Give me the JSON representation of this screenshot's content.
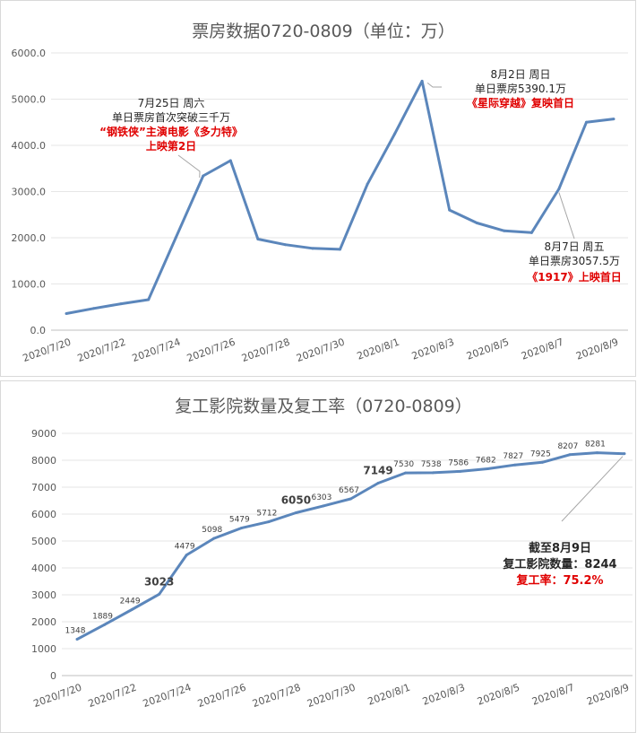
{
  "chart_data": [
    {
      "type": "line",
      "title": "票房数据0720-0809（单位：万）",
      "xlabel": "",
      "ylabel": "",
      "ylim": [
        0,
        6000
      ],
      "y_ticks": [
        "0.0",
        "1000.0",
        "2000.0",
        "3000.0",
        "4000.0",
        "5000.0",
        "6000.0"
      ],
      "x_tick_labels": [
        "2020/7/20",
        "2020/7/22",
        "2020/7/24",
        "2020/7/26",
        "2020/7/28",
        "2020/7/30",
        "2020/8/1",
        "2020/8/3",
        "2020/8/5",
        "2020/8/7",
        "2020/8/9"
      ],
      "x": [
        "2020/7/20",
        "2020/7/21",
        "2020/7/22",
        "2020/7/23",
        "2020/7/24",
        "2020/7/25",
        "2020/7/26",
        "2020/7/27",
        "2020/7/28",
        "2020/7/29",
        "2020/7/30",
        "2020/7/31",
        "2020/8/1",
        "2020/8/2",
        "2020/8/3",
        "2020/8/4",
        "2020/8/5",
        "2020/8/6",
        "2020/8/7",
        "2020/8/8",
        "2020/8/9"
      ],
      "values": [
        360,
        470,
        570,
        660,
        2000,
        3340,
        3670,
        1970,
        1850,
        1770,
        1750,
        3160,
        4250,
        5390,
        2600,
        2320,
        2150,
        2110,
        3057.5,
        4500,
        4570
      ],
      "grid": true,
      "annotations": [
        {
          "x": "2020/7/25",
          "lines": [
            "7月25日 周六",
            "单日票房首次突破三千万"
          ],
          "red_lines": [
            "“钢铁侠”主演电影《多力特》",
            "上映第2日"
          ]
        },
        {
          "x": "2020/8/2",
          "lines": [
            "8月2日 周日",
            "单日票房5390.1万"
          ],
          "red_lines": [
            "《星际穿越》复映首日"
          ]
        },
        {
          "x": "2020/8/7",
          "lines": [
            "8月7日 周五",
            "单日票房3057.5万"
          ],
          "red_lines": [
            "《1917》上映首日"
          ]
        }
      ]
    },
    {
      "type": "line",
      "title": "复工影院数量及复工率（0720-0809）",
      "xlabel": "",
      "ylabel": "",
      "ylim": [
        0,
        9000
      ],
      "y_ticks": [
        "0",
        "1000",
        "2000",
        "3000",
        "4000",
        "5000",
        "6000",
        "7000",
        "8000",
        "9000"
      ],
      "x_tick_labels": [
        "2020/7/20",
        "2020/7/22",
        "2020/7/24",
        "2020/7/26",
        "2020/7/28",
        "2020/7/30",
        "2020/8/1",
        "2020/8/3",
        "2020/8/5",
        "2020/8/7",
        "2020/8/9"
      ],
      "x": [
        "2020/7/20",
        "2020/7/21",
        "2020/7/22",
        "2020/7/23",
        "2020/7/24",
        "2020/7/25",
        "2020/7/26",
        "2020/7/27",
        "2020/7/28",
        "2020/7/29",
        "2020/7/30",
        "2020/7/31",
        "2020/8/1",
        "2020/8/2",
        "2020/8/3",
        "2020/8/4",
        "2020/8/5",
        "2020/8/6",
        "2020/8/7",
        "2020/8/8",
        "2020/8/9"
      ],
      "values": [
        1348,
        1889,
        2449,
        3023,
        4479,
        5098,
        5479,
        5712,
        6050,
        6303,
        6567,
        7149,
        7530,
        7538,
        7586,
        7682,
        7827,
        7925,
        8207,
        8281,
        8244
      ],
      "data_labels": [
        "1348",
        "1889",
        "2449",
        "3023",
        "4479",
        "5098",
        "5479",
        "5712",
        "6050",
        "6303",
        "6567",
        "7149",
        "7530",
        "7538",
        "7586",
        "7682",
        "7827",
        "7925",
        "8207",
        "8281",
        ""
      ],
      "bold_label_indices": [
        3,
        8,
        11
      ],
      "grid": true,
      "summary": {
        "line1": "截至8月9日",
        "line2": "复工影院数量：8244",
        "line3": "复工率：75.2%"
      }
    }
  ],
  "colors": {
    "series": "#5b86bb",
    "highlight": "#e00000",
    "grid": "#e6e6e6"
  }
}
